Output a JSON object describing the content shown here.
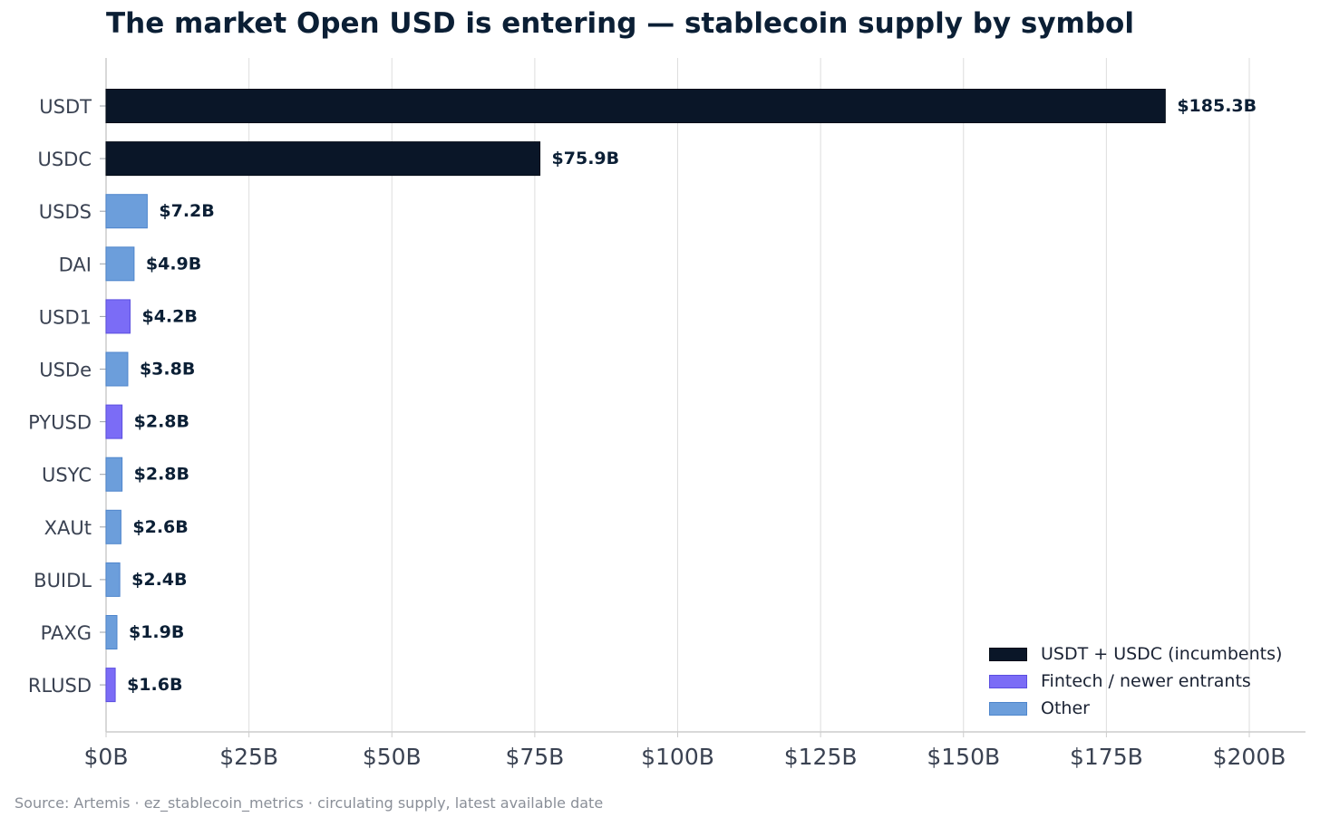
{
  "chart_data": {
    "type": "bar",
    "orientation": "horizontal",
    "title": "The market Open USD is entering — stablecoin supply by symbol",
    "xlabel": "",
    "ylabel": "",
    "xlim": [
      0,
      200
    ],
    "x_unit": "billions USD",
    "x_ticks": [
      0,
      25,
      50,
      75,
      100,
      125,
      150,
      175,
      200
    ],
    "x_tick_labels": [
      "$0B",
      "$25B",
      "$50B",
      "$75B",
      "$100B",
      "$125B",
      "$150B",
      "$175B",
      "$200B"
    ],
    "grid": "vertical",
    "legend_position": "bottom-right",
    "categories": [
      "USDT",
      "USDC",
      "USDS",
      "DAI",
      "USD1",
      "USDe",
      "PYUSD",
      "USYC",
      "XAUt",
      "BUIDL",
      "PAXG",
      "RLUSD"
    ],
    "values": [
      185.3,
      75.9,
      7.2,
      4.9,
      4.2,
      3.8,
      2.8,
      2.8,
      2.6,
      2.4,
      1.9,
      1.6
    ],
    "value_labels": [
      "$185.3B",
      "$75.9B",
      "$7.2B",
      "$4.9B",
      "$4.2B",
      "$3.8B",
      "$2.8B",
      "$2.8B",
      "$2.6B",
      "$2.4B",
      "$1.9B",
      "$1.6B"
    ],
    "groups": [
      "incumbents",
      "incumbents",
      "other",
      "other",
      "fintech",
      "other",
      "fintech",
      "other",
      "other",
      "other",
      "other",
      "fintech"
    ],
    "legend": [
      {
        "key": "incumbents",
        "label": "USDT + USDC (incumbents)",
        "color": "#0a1628"
      },
      {
        "key": "fintech",
        "label": "Fintech / newer entrants",
        "color": "#7b6cf6"
      },
      {
        "key": "other",
        "label": "Other",
        "color": "#6c9edb"
      }
    ],
    "source": "Source: Artemis · ez_stablecoin_metrics · circulating supply, latest available date"
  }
}
